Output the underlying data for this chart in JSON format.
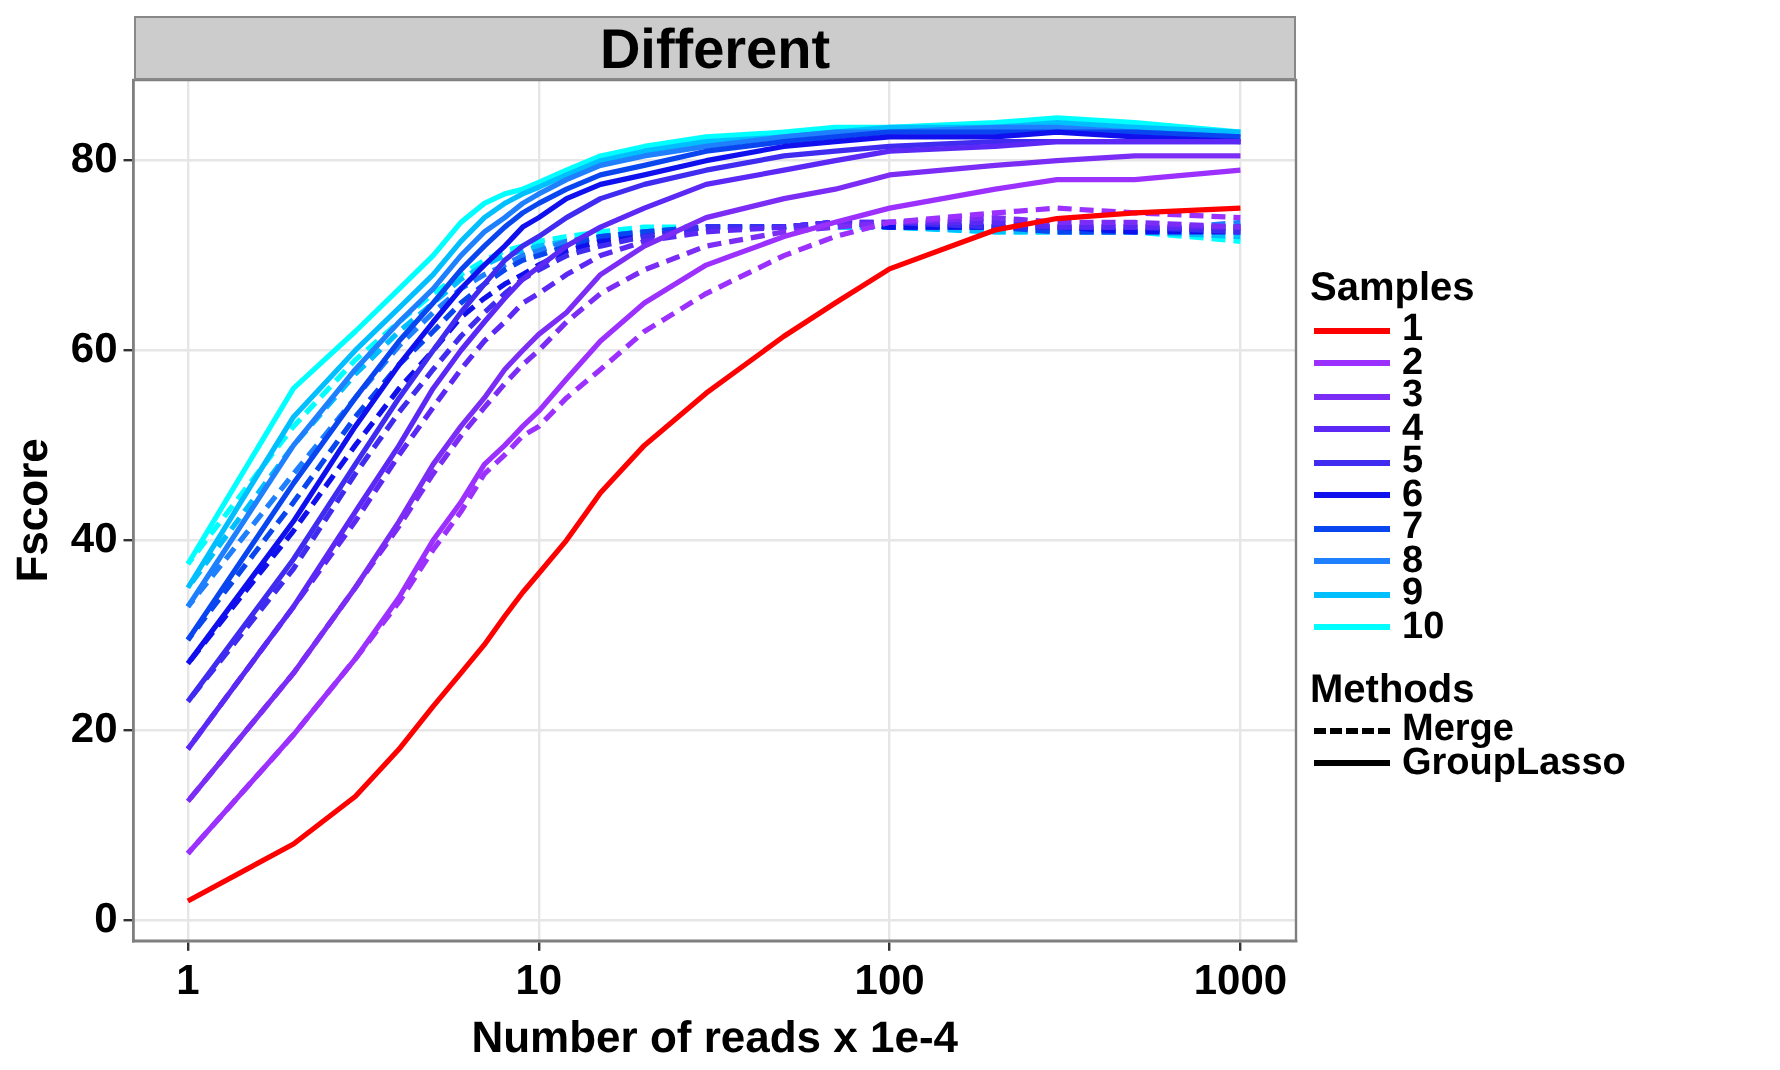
{
  "chart_data": {
    "type": "line",
    "title": "Different",
    "xlabel": "Number of reads x 1e-4",
    "ylabel": "Fscore",
    "log": "x",
    "x": [
      1,
      2,
      3,
      4,
      5,
      6,
      7,
      8,
      9,
      10,
      12,
      15,
      20,
      30,
      50,
      70,
      100,
      200,
      300,
      500,
      1000
    ],
    "xlim": [
      0.72,
      1440
    ],
    "xticks": [
      1,
      10,
      100,
      1000
    ],
    "ylim": [
      -2.2,
      88.5
    ],
    "yticks": [
      0,
      20,
      40,
      60,
      80
    ],
    "grid": true,
    "legend": "right",
    "legend_title": "Samples",
    "annotations": [
      "Methods",
      "Merge",
      "GroupLasso"
    ],
    "series": [
      {
        "name": "1",
        "color": "#ff0000",
        "line_style": "solid",
        "values": [
          2,
          8,
          13,
          18,
          22.5,
          26,
          29,
          32,
          34.5,
          36.5,
          40,
          45,
          50,
          55.5,
          61.5,
          65,
          68.6,
          72.7,
          73.9,
          74.5,
          75
        ]
      },
      {
        "name": "2",
        "color": "#9b30ff",
        "line_style": "solid",
        "values": [
          7,
          19.5,
          27.5,
          34,
          40,
          44,
          48,
          50,
          52,
          53.6,
          57,
          61,
          65,
          69,
          72,
          73.5,
          75,
          77,
          78,
          78,
          79
        ]
      },
      {
        "name": "3",
        "color": "#7b2cf5",
        "line_style": "solid",
        "values": [
          12.5,
          26,
          35,
          42,
          48,
          52,
          55,
          58,
          60,
          61.7,
          64,
          68,
          71,
          74,
          76,
          77,
          78.5,
          79.5,
          80,
          80.5,
          80.5
        ]
      },
      {
        "name": "4",
        "color": "#5b28f5",
        "line_style": "solid",
        "values": [
          18,
          33,
          43,
          50,
          56,
          60,
          63,
          65.5,
          67.5,
          68.8,
          71,
          73,
          75,
          77.5,
          79,
          80,
          81,
          81.5,
          82,
          82,
          82
        ]
      },
      {
        "name": "5",
        "color": "#3f2cf0",
        "line_style": "solid",
        "values": [
          23,
          38,
          48,
          55,
          60,
          64,
          67,
          69.5,
          71,
          72,
          74,
          76,
          77.5,
          79,
          80.5,
          81,
          81.5,
          82,
          82,
          82,
          82
        ]
      },
      {
        "name": "6",
        "color": "#1010ee",
        "line_style": "solid",
        "values": [
          27,
          42,
          52,
          58.5,
          63,
          66.5,
          69,
          71,
          73,
          74,
          76,
          77.5,
          78.5,
          80,
          81.5,
          82,
          82.5,
          82.5,
          83,
          82.5,
          82
        ]
      },
      {
        "name": "7",
        "color": "#0a46f0",
        "line_style": "solid",
        "values": [
          29.5,
          46,
          55,
          61,
          65,
          68.5,
          71,
          73,
          74.5,
          75.5,
          77,
          78.5,
          79.5,
          81,
          82,
          82.5,
          83,
          83,
          83,
          83,
          82.5
        ]
      },
      {
        "name": "8",
        "color": "#1e7fff",
        "line_style": "solid",
        "values": [
          33,
          50,
          58,
          63,
          66.5,
          70,
          72.5,
          74,
          75.5,
          76.5,
          78,
          79.5,
          80.5,
          81.5,
          82.5,
          83,
          83,
          83.5,
          83.5,
          83,
          82.5
        ]
      },
      {
        "name": "9",
        "color": "#00bfff",
        "line_style": "solid",
        "values": [
          35,
          53,
          60,
          64.5,
          68,
          71.5,
          74,
          75.5,
          76.5,
          77.2,
          78.5,
          80,
          81,
          82,
          82.5,
          83,
          83.5,
          83.5,
          84,
          83.5,
          83
        ]
      },
      {
        "name": "10",
        "color": "#00ffff",
        "line_style": "solid",
        "values": [
          37.5,
          56,
          62,
          66.5,
          70,
          73.5,
          75.5,
          76.5,
          77,
          77.7,
          79,
          80.5,
          81.5,
          82.5,
          83,
          83.5,
          83.5,
          84,
          84.5,
          84,
          83
        ]
      },
      {
        "color": "#9b30ff",
        "line_style": "dashed",
        "values": [
          7,
          19.5,
          27.5,
          33.5,
          39,
          43,
          47,
          49,
          51,
          52,
          55,
          58,
          62,
          66,
          70,
          72,
          73.5,
          74.5,
          75,
          74.5,
          74
        ]
      },
      {
        "color": "#7b2cf5",
        "line_style": "dashed",
        "values": [
          12.5,
          26,
          35,
          41.5,
          47,
          51,
          54,
          56.5,
          58.5,
          60,
          63,
          66,
          68.5,
          71,
          72.5,
          73,
          73.5,
          74,
          73.5,
          73.5,
          73
        ]
      },
      {
        "color": "#5b28f5",
        "line_style": "dashed",
        "values": [
          18,
          33,
          42,
          49,
          54,
          58,
          61,
          63,
          65,
          66,
          68,
          70,
          71.5,
          72.5,
          73,
          73.5,
          73.5,
          73.5,
          73,
          73,
          73
        ]
      },
      {
        "color": "#3f2cf0",
        "line_style": "dashed",
        "values": [
          23,
          37,
          47,
          53.5,
          58,
          61.5,
          64,
          66,
          67.5,
          68.5,
          70,
          71,
          72,
          73,
          73,
          73.5,
          73.5,
          73,
          73,
          73,
          72.5
        ]
      },
      {
        "color": "#1010ee",
        "line_style": "dashed",
        "values": [
          27,
          41,
          50,
          56,
          60,
          63.5,
          65.5,
          67,
          68,
          69,
          70.5,
          71.5,
          72,
          73,
          73,
          73.5,
          73,
          73,
          73,
          72.5,
          72.5
        ]
      },
      {
        "color": "#0a46f0",
        "line_style": "dashed",
        "values": [
          29.5,
          44,
          53,
          58.5,
          62,
          65,
          67,
          68.5,
          69.5,
          70,
          71,
          72,
          72.5,
          73,
          73,
          73.5,
          73,
          73,
          72.5,
          72.5,
          73
        ]
      },
      {
        "color": "#1e7fff",
        "line_style": "dashed",
        "values": [
          33,
          47,
          55,
          60.5,
          64,
          66.5,
          68,
          69,
          70,
          70.5,
          71.5,
          72,
          72.5,
          73,
          73,
          73.5,
          73,
          73,
          72.5,
          72.5,
          73.5
        ]
      },
      {
        "color": "#00bfff",
        "line_style": "dashed",
        "values": [
          35,
          50,
          57.5,
          62,
          65,
          67.5,
          69,
          70,
          70.5,
          71,
          71.5,
          72,
          72.5,
          73,
          73,
          73,
          73,
          72.5,
          72.5,
          72.5,
          72
        ]
      },
      {
        "color": "#00ffff",
        "line_style": "dashed",
        "values": [
          37.5,
          52,
          59,
          63,
          66,
          68,
          69.5,
          70.5,
          71,
          71.5,
          72,
          72.5,
          73,
          73,
          73,
          73,
          73,
          72.5,
          72.5,
          72.5,
          71.5
        ]
      }
    ]
  }
}
